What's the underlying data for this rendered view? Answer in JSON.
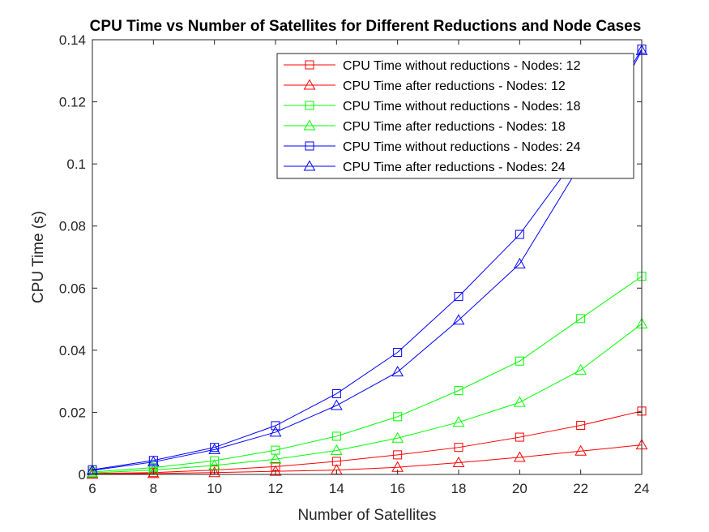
{
  "chart_data": {
    "type": "line",
    "title": "CPU Time vs Number of Satellites for Different Reductions and Node Cases",
    "xlabel": "Number of Satellites",
    "ylabel": "CPU Time (s)",
    "xlim": [
      6,
      24
    ],
    "ylim": [
      0,
      0.14
    ],
    "x_ticks": [
      "6",
      "8",
      "10",
      "12",
      "14",
      "16",
      "18",
      "20",
      "22",
      "24"
    ],
    "y_ticks": [
      "0",
      "0.02",
      "0.04",
      "0.06",
      "0.08",
      "0.1",
      "0.12",
      "0.14"
    ],
    "x": [
      6,
      8,
      10,
      12,
      14,
      16,
      18,
      20,
      22,
      24
    ],
    "legend_position": "top-right",
    "grid": false,
    "series": [
      {
        "name": "CPU Time without reductions - Nodes: 12",
        "color": "#ff0000",
        "marker": "square",
        "values": [
          0.0003,
          0.0006,
          0.0014,
          0.0025,
          0.0042,
          0.0063,
          0.0087,
          0.012,
          0.0158,
          0.0204
        ]
      },
      {
        "name": "CPU Time after reductions - Nodes: 12",
        "color": "#ff0000",
        "marker": "triangle",
        "values": [
          0.0001,
          0.0003,
          0.0006,
          0.001,
          0.0014,
          0.0023,
          0.0038,
          0.0055,
          0.0075,
          0.0095
        ]
      },
      {
        "name": "CPU Time without reductions - Nodes: 18",
        "color": "#00ff00",
        "marker": "square",
        "values": [
          0.0008,
          0.0022,
          0.0044,
          0.0078,
          0.0123,
          0.0186,
          0.027,
          0.0365,
          0.0502,
          0.0638
        ]
      },
      {
        "name": "CPU Time after reductions - Nodes: 18",
        "color": "#00ff00",
        "marker": "triangle",
        "values": [
          0.0005,
          0.0014,
          0.0029,
          0.0049,
          0.0077,
          0.0117,
          0.0168,
          0.0232,
          0.0336,
          0.0485
        ]
      },
      {
        "name": "CPU Time without reductions - Nodes: 24",
        "color": "#0000ff",
        "marker": "square",
        "values": [
          0.0015,
          0.0045,
          0.0087,
          0.0157,
          0.026,
          0.0393,
          0.0573,
          0.0773,
          0.104,
          0.137
        ]
      },
      {
        "name": "CPU Time after reductions - Nodes: 24",
        "color": "#0000ff",
        "marker": "triangle",
        "values": [
          0.0013,
          0.004,
          0.008,
          0.0136,
          0.0222,
          0.033,
          0.0497,
          0.0678,
          0.1,
          0.1365
        ]
      }
    ]
  }
}
